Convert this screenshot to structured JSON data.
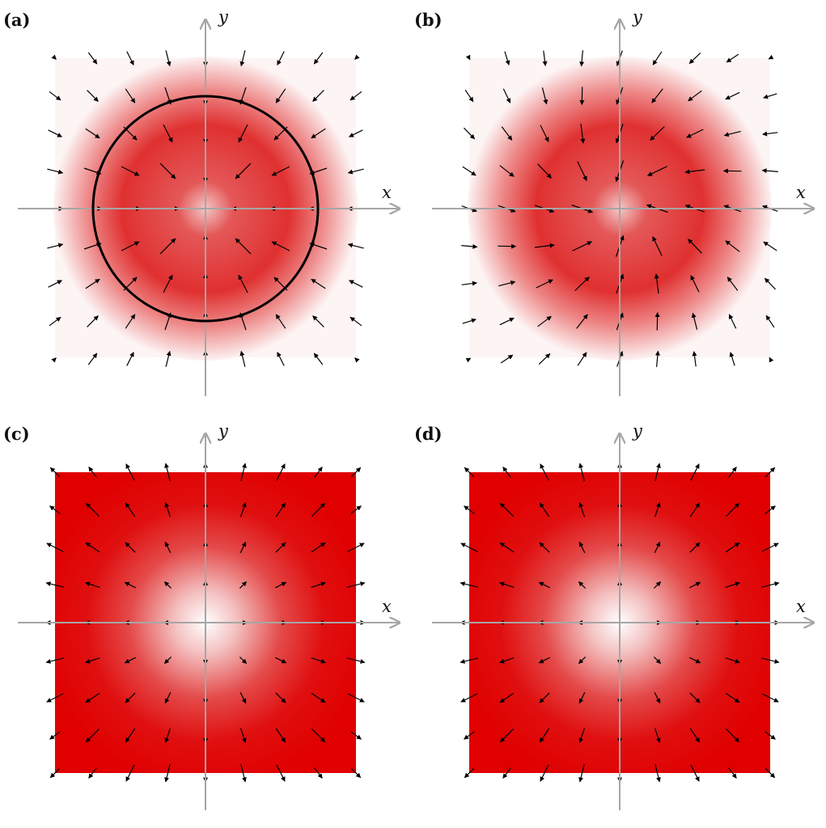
{
  "colors": {
    "field_max": "#e00000",
    "field_min": "#ffffff",
    "axis": "#a6a6a6",
    "arrow": "#000000",
    "circle": "#000000"
  },
  "panels": [
    {
      "id": "a",
      "label": "(a)",
      "x_label": "x",
      "y_label": "y",
      "pattern": "ring",
      "shows_circle": true,
      "arrows": "pattern-a"
    },
    {
      "id": "b",
      "label": "(b)",
      "x_label": "x",
      "y_label": "y",
      "pattern": "ring",
      "shows_circle": false,
      "arrows": "pattern-b"
    },
    {
      "id": "c",
      "label": "(c)",
      "x_label": "x",
      "y_label": "y",
      "pattern": "inverted",
      "shows_circle": false,
      "arrows": "outward"
    },
    {
      "id": "d",
      "label": "(d)",
      "x_label": "x",
      "y_label": "y",
      "pattern": "inverted",
      "shows_circle": false,
      "arrows": "outward"
    }
  ]
}
